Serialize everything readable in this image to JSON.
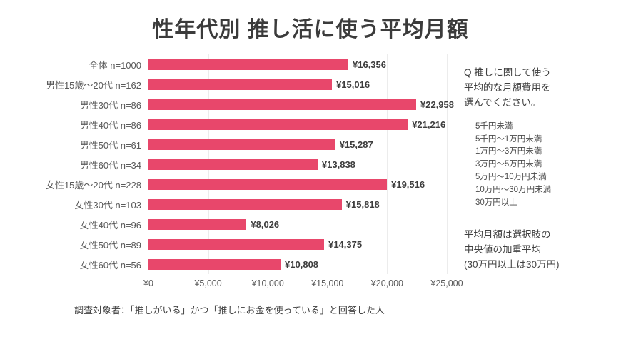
{
  "title": "性年代別 推し活に使う平均月額",
  "chart_data": {
    "type": "bar",
    "orientation": "horizontal",
    "title": "性年代別 推し活に使う平均月額",
    "categories": [
      "全体 n=1000",
      "男性15歳〜20代 n=162",
      "男性30代 n=86",
      "男性40代 n=86",
      "男性50代 n=61",
      "男性60代  n=34",
      "女性15歳〜20代  n=228",
      "女性30代 n=103",
      "女性40代 n=96",
      "女性50代 n=89",
      "女性60代 n=56"
    ],
    "values": [
      16356,
      15016,
      22958,
      21216,
      15287,
      13838,
      19516,
      15818,
      8026,
      14375,
      10808
    ],
    "value_labels": [
      "¥16,356",
      "¥15,016",
      "¥22,958",
      "¥21,216",
      "¥15,287",
      "¥13,838",
      "¥19,516",
      "¥15,818",
      "¥8,026",
      "¥14,375",
      "¥10,808"
    ],
    "xlim": [
      0,
      25000
    ],
    "xticks": [
      0,
      5000,
      10000,
      15000,
      20000,
      25000
    ],
    "xtick_labels": [
      "¥0",
      "¥5,000",
      "¥10,000",
      "¥15,000",
      "¥20,000",
      "¥25,000"
    ],
    "bar_color": "#e8476b",
    "grid": "vertical-light",
    "legend": "none"
  },
  "side_panel": {
    "question_lines": [
      "Q 推しに関して使う",
      "平均的な月額費用を",
      "選んでください。"
    ],
    "options": [
      "5千円未満",
      "5千円〜1万円未満",
      "1万円〜3万円未満",
      "3万円〜5万円未満",
      "5万円〜10万円未満",
      "10万円〜30万円未満",
      "30万円以上"
    ],
    "note_lines": [
      "平均月額は選択肢の",
      "中央値の加重平均",
      "(30万円以上は30万円)"
    ]
  },
  "footer": "調査対象者：「推しがいる」かつ「推しにお金を使っている」と回答した人"
}
